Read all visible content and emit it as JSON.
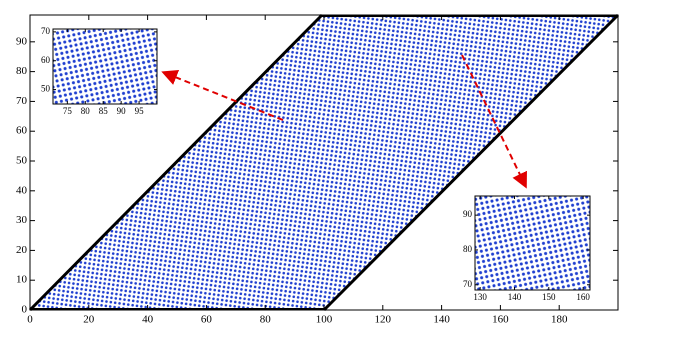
{
  "chart_data": [
    {
      "type": "scatter",
      "marker_color": "#1f3fd0",
      "xlim": [
        0,
        200
      ],
      "ylim": [
        0,
        99
      ],
      "xticks": [
        0,
        20,
        40,
        60,
        80,
        100,
        120,
        140,
        160,
        180
      ],
      "yticks": [
        0,
        10,
        20,
        30,
        40,
        50,
        60,
        70,
        80,
        90
      ]
    },
    {
      "type": "scatter",
      "marker_color": "#1f3fd0",
      "xlim": [
        71,
        100
      ],
      "ylim": [
        45,
        71
      ],
      "xticks": [
        75,
        80,
        85,
        90,
        95
      ],
      "yticks": [
        50,
        60,
        70
      ]
    },
    {
      "type": "scatter",
      "marker_color": "#1f3fd0",
      "xlim": [
        128.5,
        162
      ],
      "ylim": [
        68.5,
        95.5
      ],
      "xticks": [
        130,
        140,
        150,
        160
      ],
      "yticks": [
        70,
        80,
        90
      ]
    }
  ]
}
